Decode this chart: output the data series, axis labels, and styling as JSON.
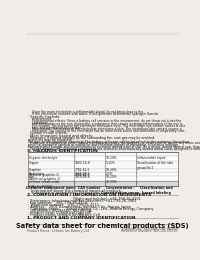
{
  "bg_color": "#f0ede8",
  "header_line1": "Product Name: Lithium Ion Battery Cell",
  "header_right1": "Reference Number: SER-LIB-00010",
  "header_right2": "Established / Revision: Dec.7,2009",
  "main_title": "Safety data sheet for chemical products (SDS)",
  "section1_title": "1. PRODUCT AND COMPANY IDENTIFICATION",
  "section1_lines": [
    "· Product name: Lithium Ion Battery Cell",
    "· Product code: Cylindrical-type cell",
    "   SR18650U, SR18650U, SR18650A,",
    "· Company name:      Sanyo Electric Co., Ltd., Mobile Energy Company",
    "· Address:   2001 Kamikosaka, Sumoto-City, Hyogo, Japan",
    "· Telephone number:   +81-799-26-4111",
    "· Fax number:   +81-799-26-4129",
    "· Emergency telephone number (daytime): +81-799-26-3962",
    "                                        (Night and holiday): +81-799-26-4101"
  ],
  "section2_title": "2. COMPOSITION / INFORMATION ON INGREDIENTS",
  "section2_sub1": "· Substance or preparation: Preparation",
  "section2_sub2": "· Information about the chemical nature of product:",
  "table_header": [
    "Chemical component name",
    "CAS number",
    "Concentration /\nConcentration range",
    "Classification and\nhazard labeling"
  ],
  "table_subrow": "Chemical name",
  "table_rows": [
    [
      "Lithium cobalt oxide\n(LiMn-Co-RiCO4)",
      "-",
      "30-50%",
      "-"
    ],
    [
      "Iron",
      "7439-89-6",
      "10-20%",
      "-"
    ],
    [
      "Aluminium",
      "7429-90-5",
      "2-5%",
      "-"
    ],
    [
      "Graphite\n(Natural graphite-1)\n(Artificial graphite-1)",
      "7782-42-5\n7782-42-5",
      "10-20%",
      "-"
    ],
    [
      "Copper",
      "7440-50-8",
      "5-15%",
      "Sensitization of the skin\ngroup No.2"
    ],
    [
      "Organic electrolyte",
      "-",
      "10-20%",
      "Inflammable liquid"
    ]
  ],
  "section3_title": "3. HAZARDS IDENTIFICATION",
  "section3_para": [
    "  For this battery cell, chemical substances are stored in a hermetically sealed metal case, designed to withstand",
    "temperature changes and electrochemical corrosion during normal use. As a result, during normal use, there is no",
    "physical danger of ignition or explosion and therefore danger of hazardous substance leakage.",
    "  However, if exposed to a fire, added mechanical shocks, decompose, or enter interior where any mass use,",
    "the gas inside cannot be operated. The battery cell case will be breached at the extreme. Hazardous",
    "materials may be released.",
    "  Moreover, if heated strongly by the surrounding fire, soot gas may be emitted."
  ],
  "section3_bullet1": "· Most important hazard and effects:",
  "section3_human": "Human health effects:",
  "section3_health": [
    "  Inhalation: The release of the electrolyte has an anesthesia action and stimulates in respiratory tract.",
    "  Skin contact: The release of the electrolyte stimulates a skin. The electrolyte skin contact causes a",
    "  sore and stimulation on the skin.",
    "  Eye contact: The release of the electrolyte stimulates eyes. The electrolyte eye contact causes a sore",
    "  and stimulation on the eye. Especially, a substance that causes a strong inflammation of the eye is",
    "  contained."
  ],
  "section3_env": "  Environmental effects: Since a battery cell remains in the environment, do not throw out it into the",
  "section3_env2": "  environment.",
  "section3_bullet2": "· Specific hazards:",
  "section3_specific": [
    "  If the electrolyte contacts with water, it will generate detrimental hydrogen fluoride.",
    "  Since the main electrolyte is inflammable liquid, do not bring close to fire."
  ]
}
